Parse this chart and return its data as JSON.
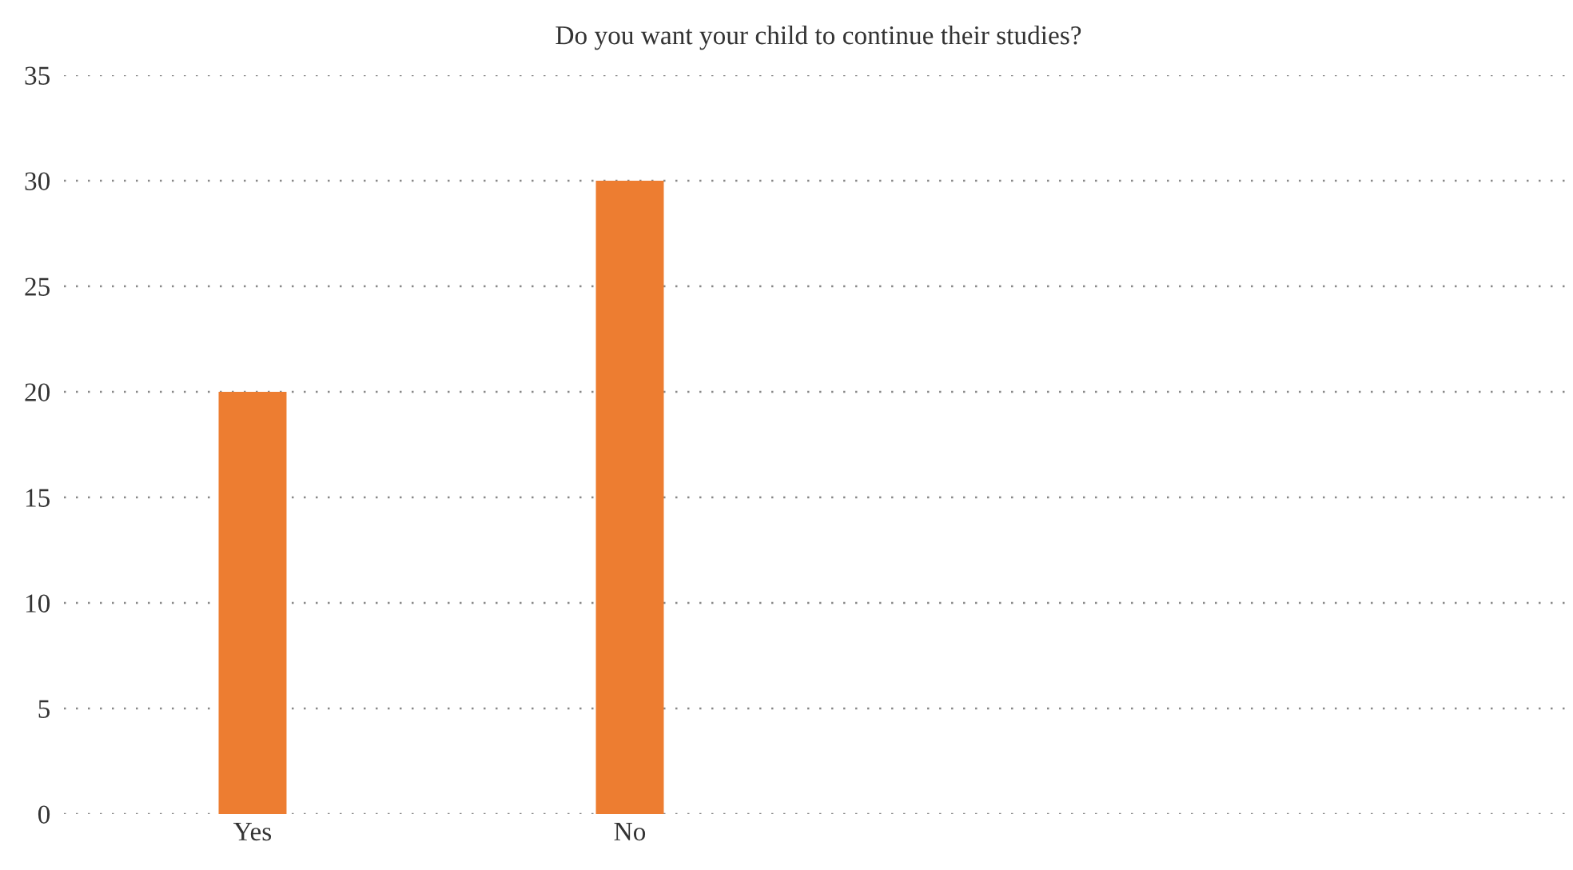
{
  "chart_data": {
    "type": "bar",
    "title": "Do you want your child to continue their studies?",
    "categories": [
      "Yes",
      "No",
      null,
      null
    ],
    "values": [
      20,
      30,
      null,
      null
    ],
    "color": "#ed7d31",
    "ylim": [
      0,
      35
    ],
    "yticks": [
      0,
      5,
      10,
      15,
      20,
      25,
      30,
      35
    ],
    "grid": "y",
    "legend": false
  }
}
